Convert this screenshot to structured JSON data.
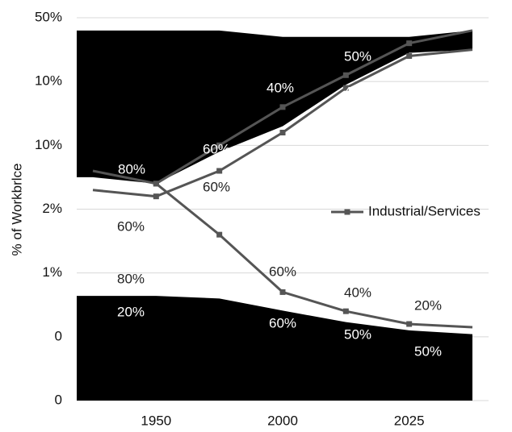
{
  "chart_data": {
    "type": "line",
    "y_label": "% of Workbrlce",
    "categories": [
      null,
      "1950",
      null,
      "2000",
      null,
      "2025",
      null
    ],
    "ylim": [
      0,
      6
    ],
    "yticks": [
      0,
      {
        "value": 1,
        "label": "0"
      },
      {
        "value": 2,
        "label": "1%"
      },
      {
        "value": 3,
        "label": "2%"
      },
      {
        "value": 4,
        "label": "10%"
      },
      {
        "value": 5,
        "label": "10%"
      },
      {
        "value": 6,
        "label": "50%"
      }
    ],
    "grid": true,
    "series": [
      {
        "type": "area",
        "color": "#000000",
        "values": [
          5.8,
          5.8,
          5.8,
          5.7,
          5.7,
          5.7,
          5.8
        ],
        "base": [
          3.5,
          3.4,
          3.9,
          4.3,
          4.95,
          5.45,
          5.5
        ]
      },
      {
        "type": "area",
        "color": "#000000",
        "values": [
          1.64,
          1.64,
          1.6,
          1.41,
          1.23,
          1.1,
          1.04
        ],
        "base": [
          0,
          0,
          0,
          0,
          0,
          0,
          0
        ]
      },
      {
        "type": "line",
        "color": "#555555",
        "values": [
          null,
          3.4,
          4.0,
          4.6,
          5.1,
          5.6,
          5.8
        ]
      },
      {
        "type": "line",
        "color": "#555555",
        "values": [
          3.3,
          3.2,
          3.6,
          4.2,
          4.9,
          5.4,
          5.5
        ]
      },
      {
        "type": "line",
        "color": "#555555",
        "name": "Industrial/Services",
        "values": [
          3.6,
          3.4,
          2.6,
          1.7,
          1.4,
          1.2,
          1.15
        ]
      }
    ],
    "annotations": [
      "50%",
      "50%",
      "40%",
      "40%",
      "50%",
      "80%",
      "60%",
      "60%",
      "60%",
      "60%",
      "60%",
      "80%",
      "20%",
      "40%",
      "20%",
      "60%",
      "50%",
      "50%"
    ]
  }
}
